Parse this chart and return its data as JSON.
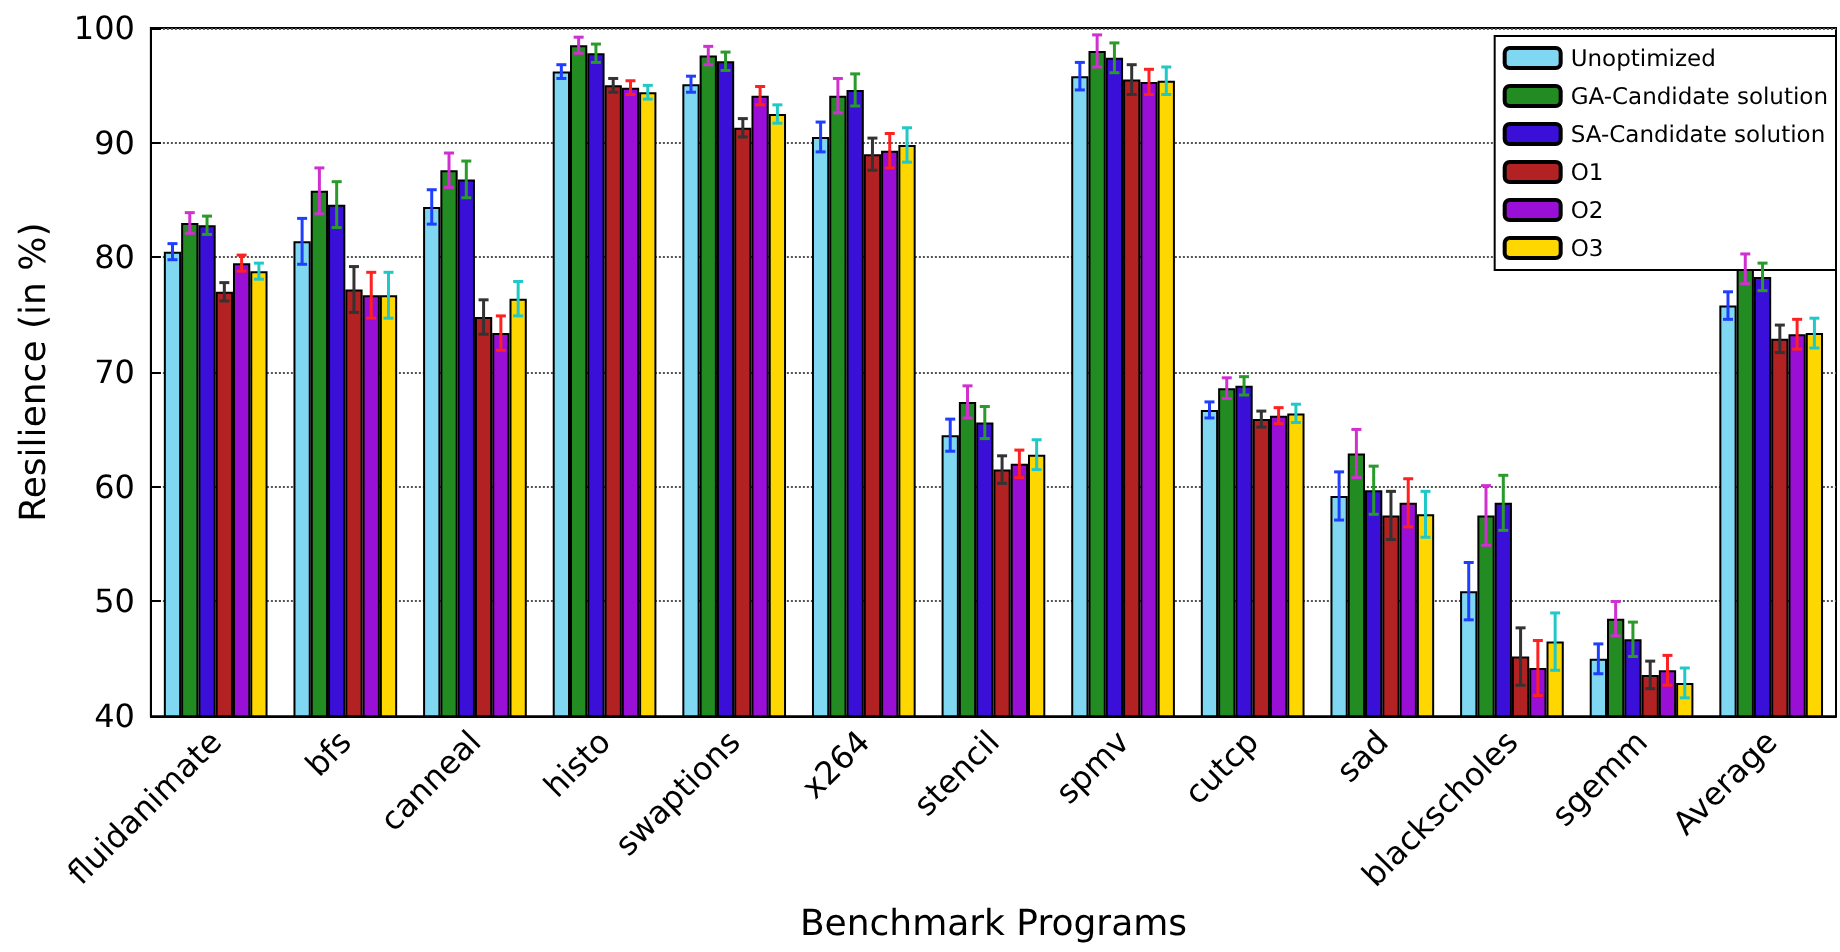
{
  "chart_data": {
    "type": "bar",
    "xlabel": "Benchmark Programs",
    "ylabel": "Resilience (in %)",
    "categories": [
      "fluidanimate",
      "bfs",
      "canneal",
      "histo",
      "swaptions",
      "x264",
      "stencil",
      "spmv",
      "cutcp",
      "sad",
      "blackscholes",
      "sgemm",
      "Average"
    ],
    "series": [
      {
        "name": "Unoptimized",
        "color": "#7fd7f2",
        "values": [
          80.5,
          81.4,
          84.4,
          96.2,
          95.1,
          90.5,
          64.5,
          95.8,
          66.7,
          59.2,
          50.9,
          45.0,
          75.8
        ],
        "errors": [
          0.7,
          2.0,
          1.5,
          0.6,
          0.7,
          1.3,
          1.4,
          1.2,
          0.7,
          2.1,
          2.5,
          1.3,
          1.2
        ]
      },
      {
        "name": "GA-Candidate solution",
        "color": "#228b22",
        "values": [
          83.0,
          85.8,
          87.6,
          98.5,
          97.6,
          94.1,
          67.4,
          98.0,
          68.6,
          62.9,
          57.5,
          48.5,
          79.0
        ],
        "errors": [
          0.9,
          2.0,
          1.5,
          0.7,
          0.8,
          1.5,
          1.4,
          1.4,
          0.9,
          2.1,
          2.6,
          1.5,
          1.3
        ]
      },
      {
        "name": "SA-Candidate solution",
        "color": "#3a10d8",
        "values": [
          82.8,
          84.6,
          86.8,
          97.8,
          97.1,
          94.6,
          65.6,
          97.4,
          68.8,
          59.7,
          58.6,
          46.7,
          78.3
        ],
        "errors": [
          0.8,
          2.0,
          1.6,
          0.8,
          0.8,
          1.4,
          1.4,
          1.3,
          0.8,
          2.1,
          2.4,
          1.5,
          1.2
        ]
      },
      {
        "name": "O1",
        "color": "#b22222",
        "values": [
          77.0,
          77.2,
          74.8,
          95.0,
          91.3,
          89.0,
          61.5,
          95.5,
          65.9,
          57.5,
          45.2,
          43.6,
          72.9
        ],
        "errors": [
          0.8,
          2.0,
          1.5,
          0.6,
          0.8,
          1.4,
          1.2,
          1.3,
          0.7,
          2.1,
          2.5,
          1.2,
          1.2
        ]
      },
      {
        "name": "O2",
        "color": "#9a0fd6",
        "values": [
          79.5,
          76.7,
          73.4,
          94.8,
          94.1,
          89.3,
          62.0,
          95.3,
          66.2,
          58.6,
          44.2,
          44.0,
          73.3
        ],
        "errors": [
          0.7,
          2.0,
          1.5,
          0.6,
          0.8,
          1.5,
          1.2,
          1.1,
          0.7,
          2.1,
          2.4,
          1.3,
          1.3
        ]
      },
      {
        "name": "O3",
        "color": "#ffd700",
        "values": [
          78.8,
          76.7,
          76.4,
          94.4,
          92.5,
          89.8,
          62.8,
          95.4,
          66.4,
          57.6,
          46.5,
          42.9,
          73.4
        ],
        "errors": [
          0.7,
          2.0,
          1.5,
          0.6,
          0.8,
          1.5,
          1.3,
          1.2,
          0.8,
          2.0,
          2.5,
          1.3,
          1.3
        ]
      }
    ],
    "ylim": [
      40,
      100
    ],
    "yticks": [
      40,
      50,
      60,
      70,
      80,
      90,
      100
    ],
    "grid": "y",
    "legend": "top right"
  }
}
